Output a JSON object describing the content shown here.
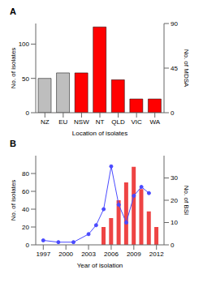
{
  "chart_data": [
    {
      "type": "bar",
      "title": "A",
      "categories": [
        "NZ",
        "EU",
        "NSW",
        "NT",
        "QLD",
        "VIC",
        "WA"
      ],
      "values": [
        50,
        58,
        58,
        125,
        48,
        20,
        20
      ],
      "colors": [
        "#bebebe",
        "#bebebe",
        "#ff0000",
        "#ff0000",
        "#ff0000",
        "#ff0000",
        "#ff0000"
      ],
      "xlabel": "Location of isolates",
      "ylabel": "No. of isolates",
      "y2label": "No. of MDSA",
      "ylim": [
        0,
        130
      ],
      "yticks": [
        0,
        50,
        100
      ],
      "y2lim": [
        0,
        90
      ],
      "y2ticks": [
        0,
        45,
        90
      ]
    },
    {
      "type": "combo",
      "title": "B",
      "x": [
        1997,
        1999,
        2001,
        2003,
        2004,
        2005,
        2006,
        2007,
        2008,
        2009,
        2010,
        2011,
        2012
      ],
      "series": [
        {
          "type": "line",
          "color": "#4a4aff",
          "marker": "circle",
          "values": [
            5,
            3,
            3,
            12,
            22,
            40,
            88,
            45,
            25,
            55,
            65,
            58,
            null
          ]
        },
        {
          "type": "bar",
          "axis": "y2",
          "color": "#ee4444",
          "values": [
            null,
            null,
            null,
            null,
            null,
            8,
            12,
            20,
            28,
            35,
            25,
            15,
            8
          ]
        }
      ],
      "xlabel": "Year of isolation",
      "ylabel": "No. of isolates",
      "y2label": "No. of BSI",
      "xlim": [
        1996,
        2013
      ],
      "xticks": [
        1997,
        2000,
        2003,
        2006,
        2009,
        2012
      ],
      "ylim": [
        0,
        100
      ],
      "yticks": [
        0,
        20,
        40,
        60,
        80
      ],
      "y2lim": [
        0,
        40
      ],
      "y2ticks": [
        0,
        10,
        20,
        30
      ]
    }
  ]
}
